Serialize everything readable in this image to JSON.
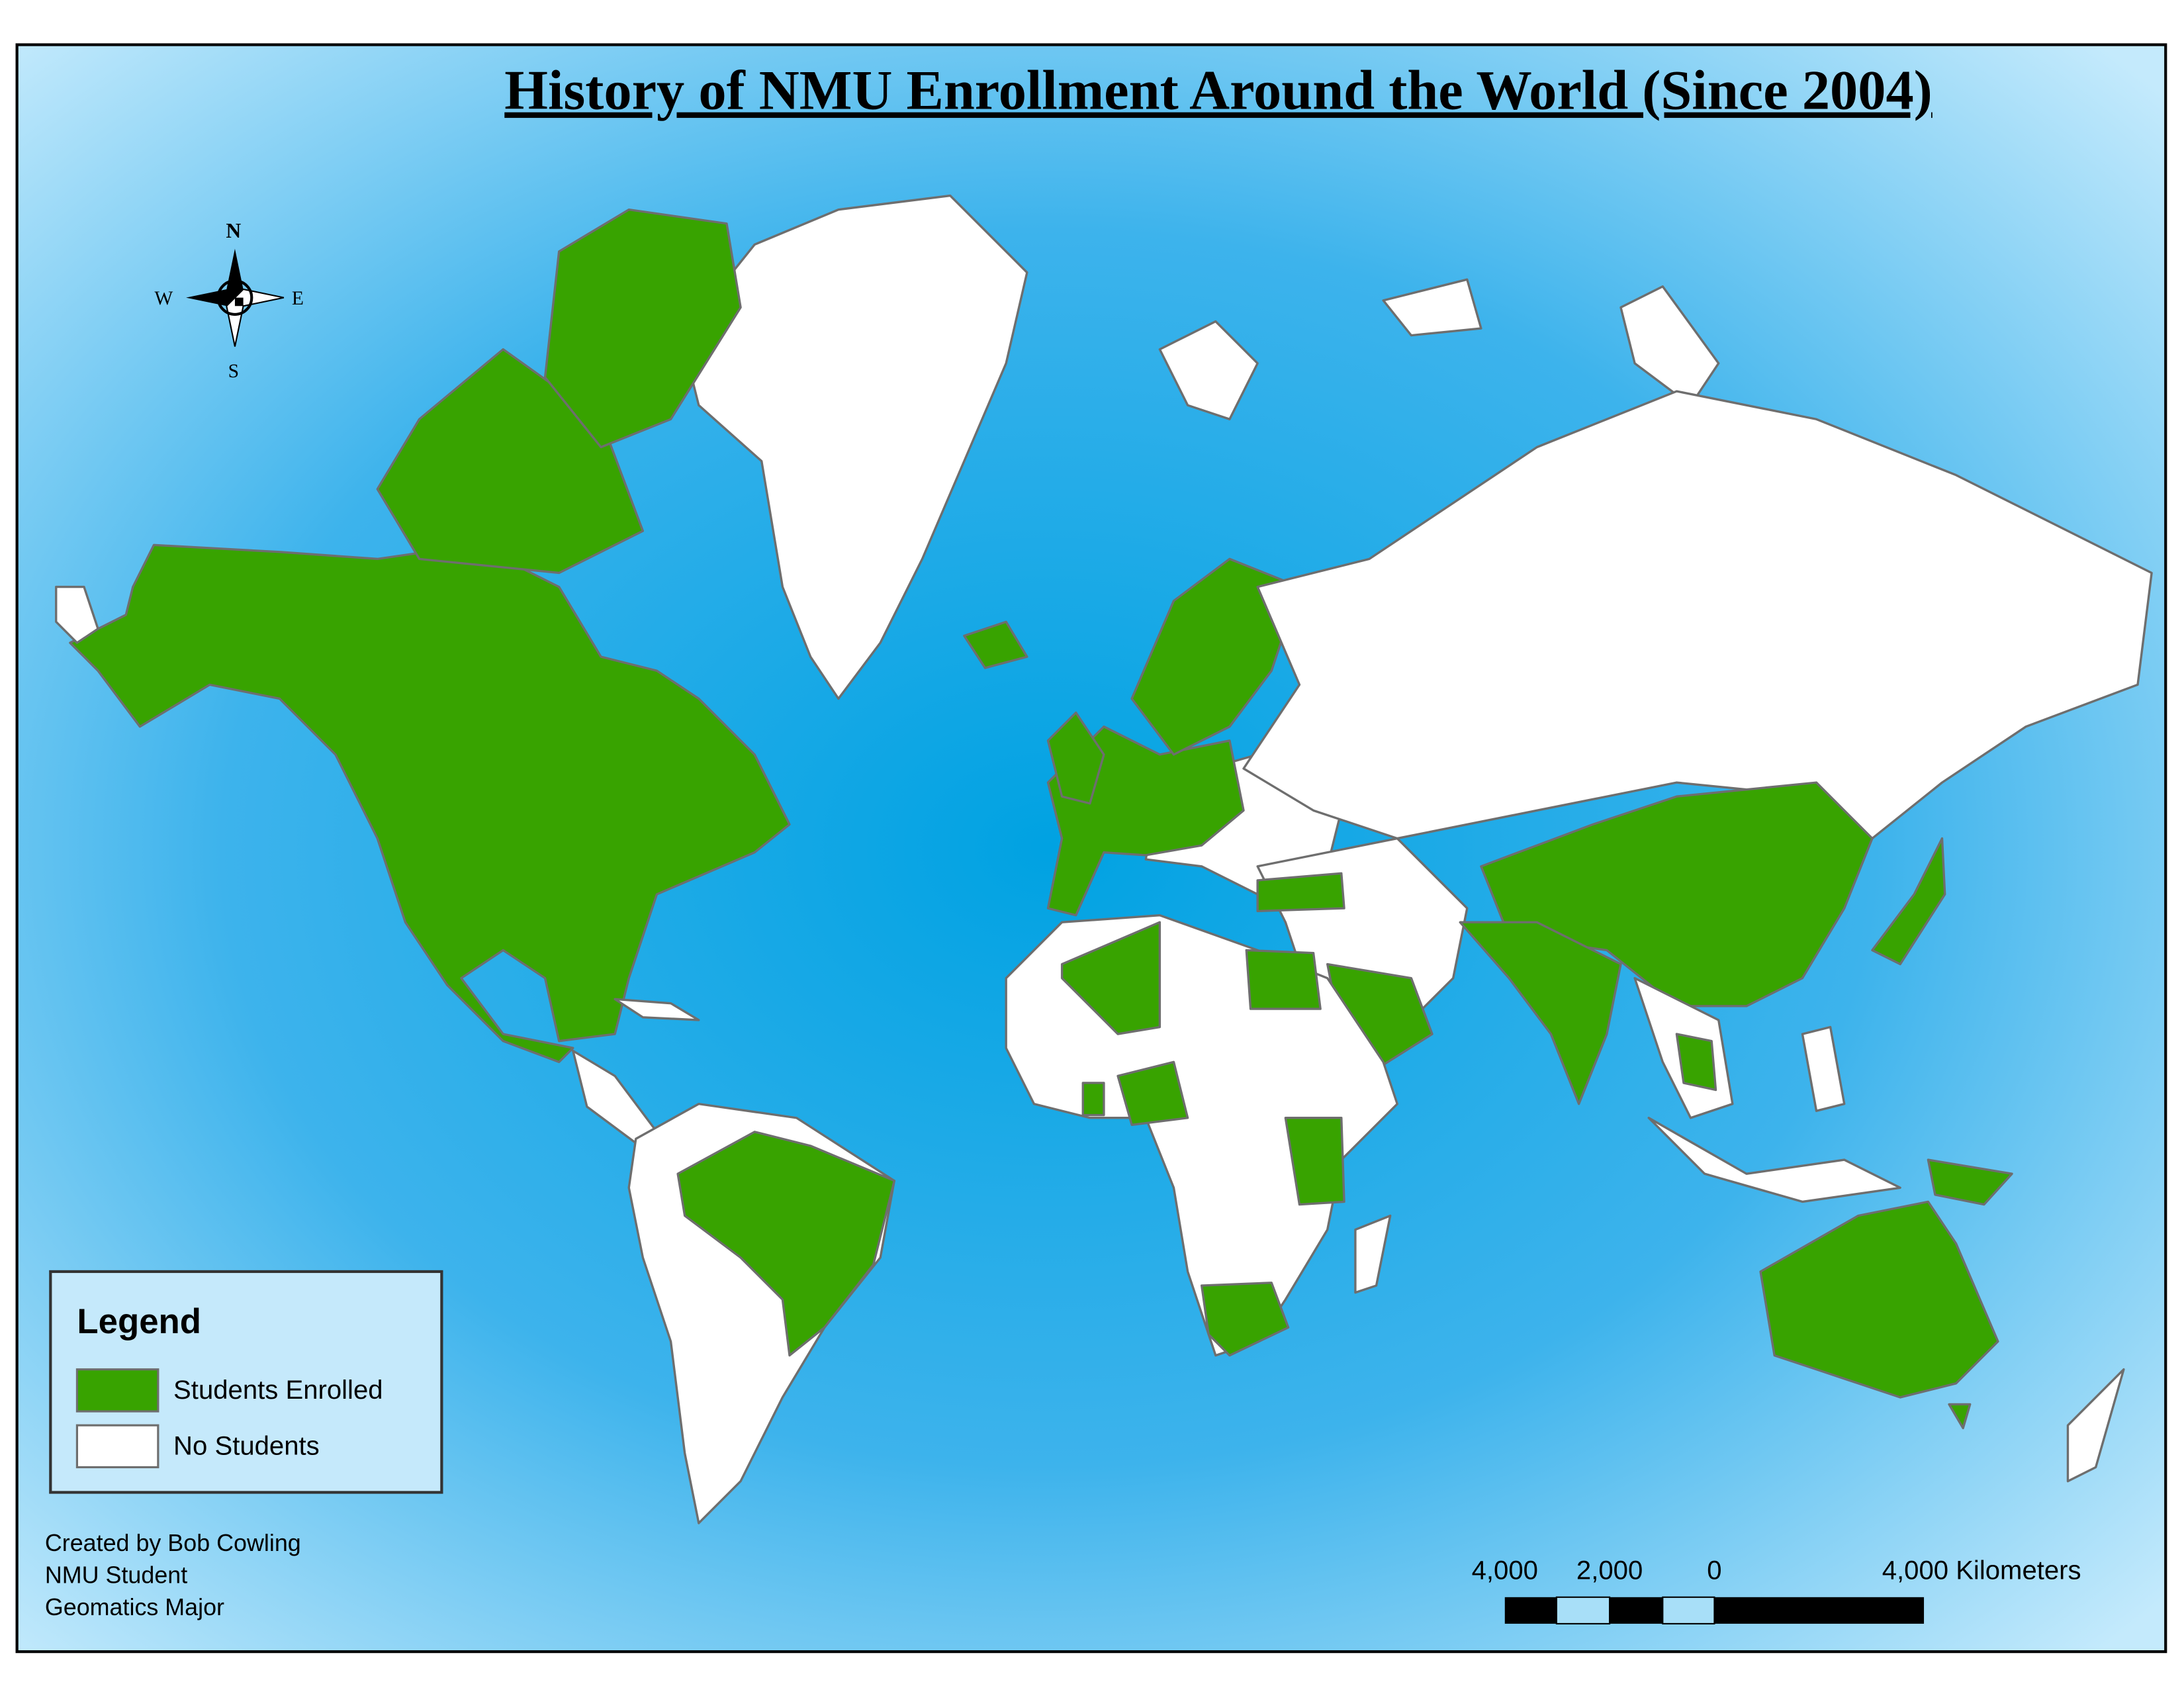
{
  "title": "History of NMU Enrollment Around the World (Since 2004)",
  "compass": {
    "north": "N",
    "east": "E",
    "south": "S",
    "west": "W"
  },
  "legend": {
    "title": "Legend",
    "items": [
      {
        "label": "Students Enrolled",
        "color": "#38a300"
      },
      {
        "label": "No Students",
        "color": "#ffffff"
      }
    ]
  },
  "credits": [
    "Created by Bob Cowling",
    "NMU Student",
    "Geomatics Major"
  ],
  "scale_bar": {
    "labels": [
      "4,000",
      "2,000",
      "0",
      "4,000 Kilometers"
    ]
  }
}
